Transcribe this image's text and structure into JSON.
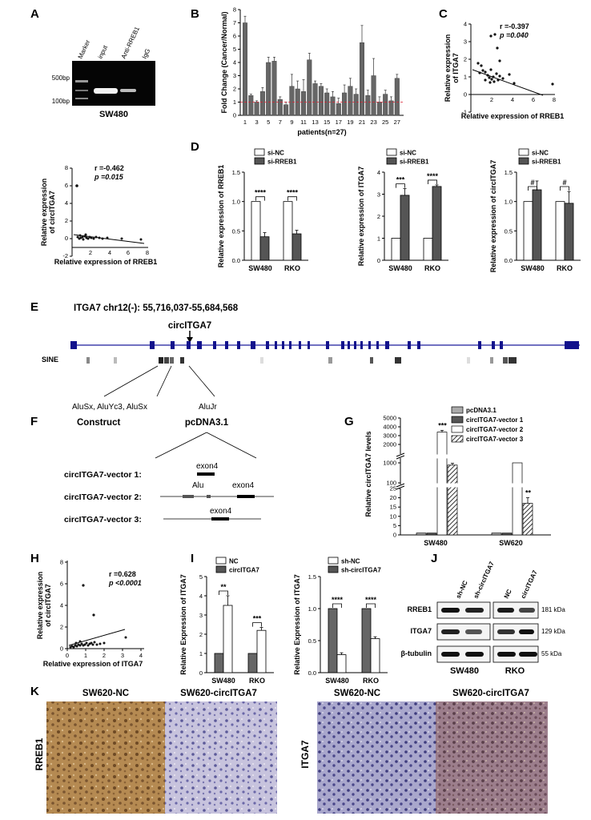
{
  "panelA": {
    "label": "A",
    "gel": {
      "ladder_top": "500bp",
      "ladder_bottom": "100bp",
      "lanes": [
        "Marker",
        "input",
        "Anti-RREB1",
        "IgG"
      ],
      "caption": "SW480"
    },
    "scatter": {
      "ylabel1": "Relative expression",
      "ylabel2": "of circITGA7",
      "xlabel": "Relative expression of RREB1",
      "r": "r =-0.462",
      "p": "p =0.015",
      "xticks": [
        "2",
        "4",
        "6",
        "8"
      ],
      "yticks": [
        "-2",
        "0",
        "2",
        "4",
        "6",
        "8"
      ]
    }
  },
  "panelB": {
    "label": "B",
    "ylabel": "Fold Change (Cancer/Normal)",
    "xlabel": "patients(n=27)",
    "yticks": [
      "0",
      "1",
      "2",
      "3",
      "4",
      "5",
      "6",
      "7",
      "8"
    ],
    "xticks": [
      "1",
      "3",
      "5",
      "7",
      "9",
      "11",
      "13",
      "15",
      "17",
      "19",
      "21",
      "23",
      "25",
      "27"
    ]
  },
  "panelC": {
    "label": "C",
    "ylabel1": "Relative expression",
    "ylabel2": "of ITGA7",
    "xlabel": "Relative expression of RREB1",
    "r": "r =-0.397",
    "p": "p =0.040",
    "xticks": [
      "2",
      "4",
      "6",
      "8"
    ],
    "yticks": [
      "-1",
      "0",
      "1",
      "2",
      "3",
      "4"
    ]
  },
  "panelD": {
    "label": "D",
    "legend": [
      "si-NC",
      "si-RREB1"
    ],
    "groups": [
      "SW480",
      "RKO"
    ],
    "charts": [
      {
        "ylabel": "Relative expression of RREB1",
        "yticks": [
          "0.0",
          "0.5",
          "1.0",
          "1.5"
        ],
        "stars": [
          "****",
          "****"
        ]
      },
      {
        "ylabel": "Relative expression of ITGA7",
        "yticks": [
          "0",
          "1",
          "2",
          "3",
          "4"
        ],
        "stars": [
          "***",
          "****"
        ]
      },
      {
        "ylabel": "Relative expression of circITGA7",
        "yticks": [
          "0.0",
          "0.5",
          "1.0",
          "1.5"
        ],
        "stars": [
          "#",
          "#"
        ]
      }
    ]
  },
  "panelE": {
    "label": "E",
    "title": "ITGA7 chr12(-): 55,716,037-55,684,568",
    "arrow_label": "circITGA7",
    "track": "SINE",
    "alu1": "AluSx, AluYc3, AluSx",
    "alu2": "AluJr"
  },
  "panelF": {
    "label": "F",
    "construct": "Construct",
    "vector": "pcDNA3.1",
    "rows": [
      "circITGA7-vector 1:",
      "circITGA7-vector 2:",
      "circITGA7-vector 3:"
    ],
    "exon": "exon4",
    "alu": "Alu"
  },
  "panelG": {
    "label": "G",
    "legend": [
      "pcDNA3.1",
      "circITGA7-vector 1",
      "circITGA7-vector 2",
      "circITGA7-vector 3"
    ],
    "ylabel": "Relative circITGA7 levels",
    "yticks": [
      "0",
      "5",
      "10",
      "15",
      "20",
      "25",
      "100",
      "1000",
      "2000",
      "3000",
      "4000",
      "5000"
    ],
    "groups": [
      "SW480",
      "SW620"
    ],
    "stars": [
      "***",
      "**",
      "****",
      "**"
    ]
  },
  "panelH": {
    "label": "H",
    "ylabel1": "Relative expression",
    "ylabel2": "of circITGA7",
    "xlabel": "Relative expression of ITGA7",
    "r": "r =0.628",
    "p": "p <0.0001",
    "xticks": [
      "0",
      "1",
      "2",
      "3",
      "4"
    ],
    "yticks": [
      "0",
      "2",
      "4",
      "6",
      "8"
    ]
  },
  "panelI": {
    "label": "I",
    "charts": [
      {
        "legend": [
          "NC",
          "circITGA7"
        ],
        "ylabel": "Relative Expression of ITGA7",
        "yticks": [
          "0",
          "1",
          "2",
          "3",
          "4",
          "5"
        ],
        "stars": [
          "**",
          "***"
        ]
      },
      {
        "legend": [
          "sh-NC",
          "sh-circITGA7"
        ],
        "ylabel": "Relative Expression of ITGA7",
        "yticks": [
          "0.0",
          "0.5",
          "1.0",
          "1.5"
        ],
        "stars": [
          "****",
          "****"
        ]
      }
    ],
    "groups": [
      "SW480",
      "RKO"
    ]
  },
  "panelJ": {
    "label": "J",
    "lanes": [
      "sh-NC",
      "sh-circITGA7",
      "NC",
      "circITGA7"
    ],
    "proteins": [
      "RREB1",
      "ITGA7",
      "β-tubulin"
    ],
    "sizes": [
      "181 kDa",
      "129 kDa",
      "55 kDa"
    ],
    "groups": [
      "SW480",
      "RKO"
    ]
  },
  "panelK": {
    "label": "K",
    "titles": [
      "SW620-NC",
      "SW620-circITGA7",
      "SW620-NC",
      "SW620-circITGA7"
    ],
    "rows": [
      "RREB1",
      "ITGA7"
    ]
  }
}
